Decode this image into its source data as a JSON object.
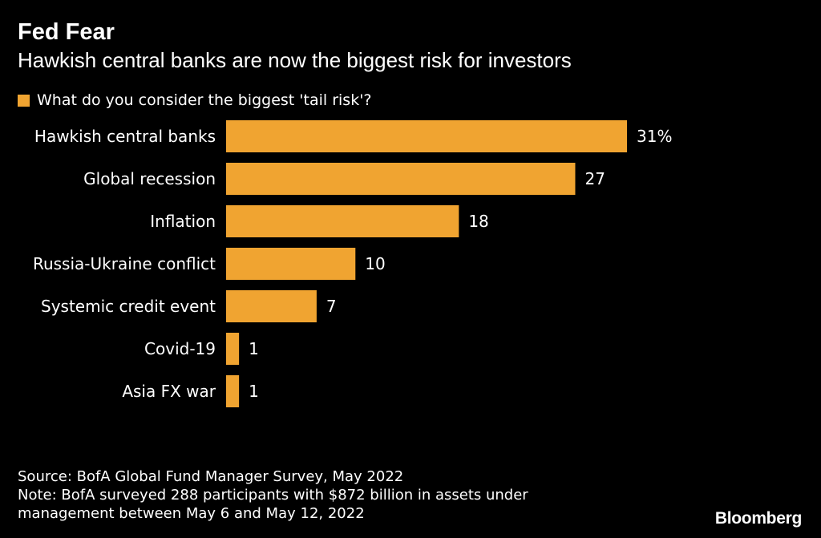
{
  "header": {
    "title": "Fed Fear",
    "subtitle": "Hawkish central banks are now the biggest risk for investors"
  },
  "legend": {
    "label": "What do you consider the biggest 'tail risk'?"
  },
  "colors": {
    "bar": "#f0a431",
    "background": "#000000",
    "text": "#ffffff"
  },
  "chart_data": {
    "type": "bar",
    "orientation": "horizontal",
    "categories": [
      "Hawkish central banks",
      "Global recession",
      "Inflation",
      "Russia-Ukraine conflict",
      "Systemic credit event",
      "Covid-19",
      "Asia FX war"
    ],
    "series": [
      {
        "name": "What do you consider the biggest 'tail risk'?",
        "values": [
          31,
          27,
          18,
          10,
          7,
          1,
          1
        ]
      }
    ],
    "value_labels": [
      "31%",
      "27",
      "18",
      "10",
      "7",
      "1",
      "1"
    ],
    "title": "Fed Fear",
    "subtitle": "Hawkish central banks are now the biggest risk for investors",
    "xlabel": "",
    "ylabel": "",
    "xlim": [
      0,
      31
    ],
    "grid": false,
    "legend_position": "top-left"
  },
  "footer": {
    "source": "Source: BofA Global Fund Manager Survey, May 2022",
    "note": "Note: BofA surveyed 288 participants with $872 billion in assets under management between May 6 and May 12, 2022"
  },
  "brand": {
    "name": "Bloomberg"
  }
}
